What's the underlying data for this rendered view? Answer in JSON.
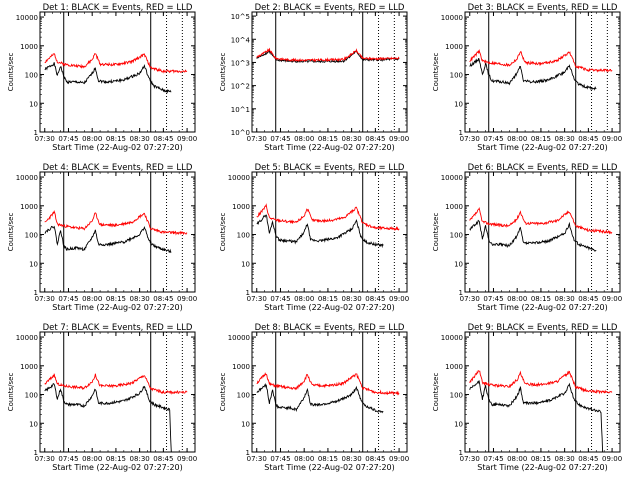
{
  "figure": {
    "xlabel": "Start Time (22-Aug-02 07:27:20)",
    "ylabel": "Counts/sec",
    "x_tick_labels": [
      "07:30",
      "07:45",
      "08:00",
      "08:15",
      "08:30",
      "08:45",
      "09:00"
    ],
    "y_tick_labels": [
      "1",
      "10",
      "100",
      "1000",
      "10000"
    ],
    "y_tick_labels_exp": [
      "10^0",
      "10^1",
      "10^2",
      "10^3",
      "10^4",
      "10^5"
    ],
    "colors": {
      "events": "#000000",
      "lld": "#ff0000",
      "axes": "#000000"
    }
  },
  "chart_data": [
    {
      "type": "line",
      "title": "Det 1: BLACK = Events, RED = LLD",
      "x_unit": "time (HH:MM UT)",
      "xlim": [
        "07:27",
        "09:05"
      ],
      "ylim": [
        1,
        15000
      ],
      "yscale": "log",
      "vertical_lines_solid": [
        "07:42",
        "08:37"
      ],
      "vertical_lines_dotted": [
        "08:47",
        "08:57"
      ],
      "series": [
        {
          "name": "Events",
          "color": "#000000",
          "x": [
            "07:30",
            "07:36",
            "07:38",
            "07:40",
            "07:42",
            "07:44",
            "07:50",
            "07:55",
            "08:00",
            "08:02",
            "08:04",
            "08:10",
            "08:20",
            "08:30",
            "08:33",
            "08:36",
            "08:39",
            "08:45",
            "08:50"
          ],
          "values": [
            150,
            240,
            90,
            200,
            85,
            55,
            55,
            50,
            110,
            170,
            60,
            55,
            65,
            110,
            200,
            70,
            40,
            28,
            25
          ]
        },
        {
          "name": "LLD",
          "color": "#ff0000",
          "x": [
            "07:30",
            "07:36",
            "07:38",
            "07:42",
            "07:50",
            "07:55",
            "08:00",
            "08:02",
            "08:05",
            "08:15",
            "08:25",
            "08:33",
            "08:37",
            "08:45",
            "09:00"
          ],
          "values": [
            270,
            520,
            280,
            230,
            200,
            190,
            330,
            550,
            230,
            220,
            280,
            500,
            170,
            130,
            130
          ]
        }
      ]
    },
    {
      "type": "line",
      "title": "Det 2: BLACK = Events, RED = LLD",
      "x_unit": "time (HH:MM UT)",
      "xlim": [
        "07:27",
        "09:05"
      ],
      "ylim": [
        1,
        150000
      ],
      "yscale": "log",
      "vertical_lines_solid": [
        "07:42",
        "08:37"
      ],
      "vertical_lines_dotted": [
        "08:47",
        "08:57"
      ],
      "series": [
        {
          "name": "Events",
          "color": "#000000",
          "x": [
            "07:30",
            "07:38",
            "07:42",
            "07:50",
            "08:00",
            "08:15",
            "08:25",
            "08:33",
            "08:37",
            "08:45",
            "09:00"
          ],
          "values": [
            1500,
            3000,
            1300,
            1150,
            1100,
            1100,
            1150,
            3000,
            1300,
            1300,
            1400
          ]
        },
        {
          "name": "LLD",
          "color": "#ff0000",
          "x": [
            "07:30",
            "07:38",
            "07:42",
            "07:50",
            "08:00",
            "08:15",
            "08:25",
            "08:33",
            "08:37",
            "08:45",
            "09:00"
          ],
          "values": [
            1700,
            3500,
            1500,
            1300,
            1250,
            1300,
            1350,
            3200,
            1500,
            1450,
            1500
          ]
        }
      ]
    },
    {
      "type": "line",
      "title": "Det 3: BLACK = Events, RED = LLD",
      "x_unit": "time (HH:MM UT)",
      "xlim": [
        "07:27",
        "09:05"
      ],
      "ylim": [
        1,
        15000
      ],
      "yscale": "log",
      "vertical_lines_solid": [
        "07:42",
        "08:37"
      ],
      "vertical_lines_dotted": [
        "08:47",
        "08:57"
      ],
      "series": [
        {
          "name": "Events",
          "color": "#000000",
          "x": [
            "07:30",
            "07:36",
            "07:38",
            "07:40",
            "07:42",
            "07:44",
            "07:50",
            "07:55",
            "08:00",
            "08:02",
            "08:04",
            "08:10",
            "08:20",
            "08:30",
            "08:33",
            "08:36",
            "08:39",
            "08:45",
            "08:50"
          ],
          "values": [
            200,
            350,
            100,
            240,
            100,
            60,
            55,
            50,
            110,
            200,
            60,
            55,
            65,
            120,
            220,
            70,
            45,
            35,
            32
          ]
        },
        {
          "name": "LLD",
          "color": "#ff0000",
          "x": [
            "07:30",
            "07:36",
            "07:38",
            "07:42",
            "07:50",
            "07:55",
            "08:00",
            "08:02",
            "08:05",
            "08:15",
            "08:25",
            "08:33",
            "08:37",
            "08:45",
            "09:00"
          ],
          "values": [
            300,
            650,
            300,
            260,
            230,
            210,
            350,
            650,
            260,
            240,
            300,
            600,
            200,
            140,
            140
          ]
        }
      ]
    },
    {
      "type": "line",
      "title": "Det 4: BLACK = Events, RED = LLD",
      "x_unit": "time (HH:MM UT)",
      "xlim": [
        "07:27",
        "09:05"
      ],
      "ylim": [
        1,
        15000
      ],
      "yscale": "log",
      "vertical_lines_solid": [
        "07:42",
        "08:37"
      ],
      "vertical_lines_dotted": [
        "08:47",
        "08:57"
      ],
      "series": [
        {
          "name": "Events",
          "color": "#000000",
          "x": [
            "07:30",
            "07:36",
            "07:38",
            "07:40",
            "07:42",
            "07:44",
            "07:50",
            "07:55",
            "08:00",
            "08:02",
            "08:04",
            "08:10",
            "08:20",
            "08:30",
            "08:33",
            "08:36",
            "08:39",
            "08:45",
            "08:50"
          ],
          "values": [
            120,
            200,
            45,
            150,
            40,
            30,
            35,
            30,
            80,
            140,
            45,
            45,
            55,
            100,
            180,
            60,
            40,
            30,
            25
          ]
        },
        {
          "name": "LLD",
          "color": "#ff0000",
          "x": [
            "07:30",
            "07:36",
            "07:38",
            "07:42",
            "07:50",
            "07:55",
            "08:00",
            "08:02",
            "08:05",
            "08:15",
            "08:25",
            "08:33",
            "08:37",
            "08:45",
            "09:00"
          ],
          "values": [
            250,
            600,
            230,
            200,
            170,
            160,
            300,
            550,
            220,
            210,
            270,
            550,
            160,
            120,
            110
          ]
        }
      ]
    },
    {
      "type": "line",
      "title": "Det 5: BLACK = Events, RED = LLD",
      "x_unit": "time (HH:MM UT)",
      "xlim": [
        "07:27",
        "09:05"
      ],
      "ylim": [
        1,
        15000
      ],
      "yscale": "log",
      "vertical_lines_solid": [
        "07:42",
        "08:37"
      ],
      "vertical_lines_dotted": [
        "08:47",
        "08:57"
      ],
      "series": [
        {
          "name": "Events",
          "color": "#000000",
          "x": [
            "07:30",
            "07:36",
            "07:38",
            "07:40",
            "07:42",
            "07:44",
            "07:50",
            "07:55",
            "08:00",
            "08:02",
            "08:04",
            "08:10",
            "08:20",
            "08:30",
            "08:33",
            "08:36",
            "08:39",
            "08:45",
            "08:50"
          ],
          "values": [
            220,
            500,
            110,
            280,
            100,
            65,
            60,
            55,
            120,
            240,
            65,
            60,
            75,
            150,
            300,
            80,
            55,
            45,
            42
          ]
        },
        {
          "name": "LLD",
          "color": "#ff0000",
          "x": [
            "07:30",
            "07:36",
            "07:38",
            "07:42",
            "07:50",
            "07:55",
            "08:00",
            "08:02",
            "08:05",
            "08:15",
            "08:25",
            "08:33",
            "08:37",
            "08:45",
            "09:00"
          ],
          "values": [
            400,
            1000,
            380,
            320,
            280,
            260,
            450,
            800,
            310,
            300,
            380,
            850,
            250,
            170,
            160
          ]
        }
      ]
    },
    {
      "type": "line",
      "title": "Det 6: BLACK = Events, RED = LLD",
      "x_unit": "time (HH:MM UT)",
      "xlim": [
        "07:27",
        "09:05"
      ],
      "ylim": [
        1,
        15000
      ],
      "yscale": "log",
      "vertical_lines_solid": [
        "07:42",
        "08:37"
      ],
      "vertical_lines_dotted": [
        "08:47",
        "08:57"
      ],
      "series": [
        {
          "name": "Events",
          "color": "#000000",
          "x": [
            "07:30",
            "07:36",
            "07:38",
            "07:40",
            "07:42",
            "07:44",
            "07:50",
            "07:55",
            "08:00",
            "08:02",
            "08:04",
            "08:10",
            "08:20",
            "08:30",
            "08:33",
            "08:36",
            "08:39",
            "08:45",
            "08:50"
          ],
          "values": [
            150,
            300,
            70,
            200,
            65,
            45,
            45,
            40,
            90,
            170,
            50,
            50,
            60,
            110,
            220,
            65,
            45,
            35,
            28
          ]
        },
        {
          "name": "LLD",
          "color": "#ff0000",
          "x": [
            "07:30",
            "07:36",
            "07:38",
            "07:42",
            "07:50",
            "07:55",
            "08:00",
            "08:02",
            "08:05",
            "08:15",
            "08:25",
            "08:33",
            "08:37",
            "08:45",
            "09:00"
          ],
          "values": [
            300,
            750,
            280,
            240,
            210,
            200,
            360,
            620,
            250,
            240,
            300,
            650,
            200,
            140,
            120
          ]
        }
      ]
    },
    {
      "type": "line",
      "title": "Det 7: BLACK = Events, RED = LLD",
      "x_unit": "time (HH:MM UT)",
      "xlim": [
        "07:27",
        "09:05"
      ],
      "ylim": [
        1,
        15000
      ],
      "yscale": "log",
      "vertical_lines_solid": [
        "07:42",
        "08:37"
      ],
      "vertical_lines_dotted": [
        "08:47",
        "08:57"
      ],
      "series": [
        {
          "name": "Events",
          "color": "#000000",
          "x": [
            "07:30",
            "07:36",
            "07:38",
            "07:40",
            "07:42",
            "07:44",
            "07:50",
            "07:55",
            "08:00",
            "08:02",
            "08:04",
            "08:10",
            "08:20",
            "08:30",
            "08:33",
            "08:36",
            "08:39",
            "08:45",
            "08:49",
            "08:50"
          ],
          "values": [
            130,
            230,
            70,
            160,
            60,
            45,
            45,
            40,
            90,
            160,
            50,
            50,
            60,
            110,
            200,
            65,
            45,
            35,
            30,
            1
          ]
        },
        {
          "name": "LLD",
          "color": "#ff0000",
          "x": [
            "07:30",
            "07:36",
            "07:38",
            "07:42",
            "07:50",
            "07:55",
            "08:00",
            "08:02",
            "08:05",
            "08:15",
            "08:25",
            "08:33",
            "08:37",
            "08:45",
            "09:00"
          ],
          "values": [
            230,
            480,
            230,
            200,
            180,
            170,
            280,
            480,
            200,
            200,
            250,
            470,
            160,
            120,
            120
          ]
        }
      ]
    },
    {
      "type": "line",
      "title": "Det 8: BLACK = Events, RED = LLD",
      "x_unit": "time (HH:MM UT)",
      "xlim": [
        "07:27",
        "09:05"
      ],
      "ylim": [
        1,
        15000
      ],
      "yscale": "log",
      "vertical_lines_solid": [
        "07:42",
        "08:37"
      ],
      "vertical_lines_dotted": [
        "08:47",
        "08:57"
      ],
      "series": [
        {
          "name": "Events",
          "color": "#000000",
          "x": [
            "07:30",
            "07:36",
            "07:38",
            "07:40",
            "07:42",
            "07:44",
            "07:50",
            "07:55",
            "08:00",
            "08:02",
            "08:04",
            "08:10",
            "08:20",
            "08:30",
            "08:33",
            "08:36",
            "08:39",
            "08:45",
            "08:50"
          ],
          "values": [
            120,
            220,
            50,
            150,
            45,
            35,
            35,
            30,
            80,
            150,
            45,
            45,
            55,
            100,
            180,
            60,
            40,
            28,
            25
          ]
        },
        {
          "name": "LLD",
          "color": "#ff0000",
          "x": [
            "07:30",
            "07:36",
            "07:38",
            "07:42",
            "07:50",
            "07:55",
            "08:00",
            "08:02",
            "08:05",
            "08:15",
            "08:25",
            "08:33",
            "08:37",
            "08:45",
            "09:00"
          ],
          "values": [
            250,
            550,
            230,
            200,
            170,
            160,
            300,
            500,
            210,
            200,
            250,
            520,
            170,
            120,
            110
          ]
        }
      ]
    },
    {
      "type": "line",
      "title": "Det 9: BLACK = Events, RED = LLD",
      "x_unit": "time (HH:MM UT)",
      "xlim": [
        "07:27",
        "09:05"
      ],
      "ylim": [
        1,
        15000
      ],
      "yscale": "log",
      "vertical_lines_solid": [
        "07:42",
        "08:37"
      ],
      "vertical_lines_dotted": [
        "08:47",
        "08:57"
      ],
      "series": [
        {
          "name": "Events",
          "color": "#000000",
          "x": [
            "07:30",
            "07:36",
            "07:38",
            "07:40",
            "07:42",
            "07:44",
            "07:50",
            "07:55",
            "08:00",
            "08:02",
            "08:04",
            "08:10",
            "08:20",
            "08:30",
            "08:33",
            "08:36",
            "08:39",
            "08:45",
            "08:53",
            "08:54"
          ],
          "values": [
            150,
            280,
            70,
            200,
            65,
            45,
            45,
            40,
            90,
            170,
            50,
            50,
            60,
            110,
            220,
            65,
            45,
            32,
            25,
            1
          ]
        },
        {
          "name": "LLD",
          "color": "#ff0000",
          "x": [
            "07:30",
            "07:36",
            "07:38",
            "07:42",
            "07:50",
            "07:55",
            "08:00",
            "08:02",
            "08:05",
            "08:15",
            "08:25",
            "08:33",
            "08:37",
            "08:45",
            "09:00"
          ],
          "values": [
            270,
            700,
            260,
            220,
            200,
            190,
            330,
            550,
            230,
            220,
            280,
            600,
            180,
            130,
            120
          ]
        }
      ]
    }
  ]
}
